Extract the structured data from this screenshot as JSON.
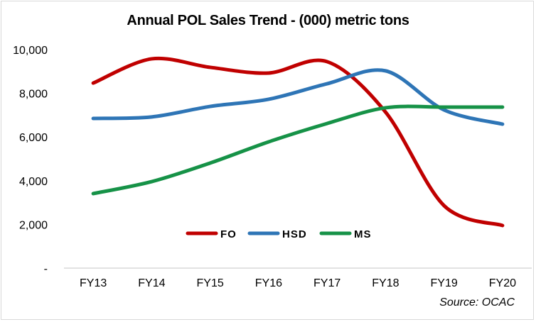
{
  "chart_data": {
    "type": "line",
    "title": "Annual POL Sales Trend - (000) metric tons",
    "xlabel": "",
    "ylabel": "",
    "categories": [
      "FY13",
      "FY14",
      "FY15",
      "FY16",
      "FY17",
      "FY18",
      "FY19",
      "FY20"
    ],
    "ylim": [
      0,
      10000
    ],
    "yticks": [
      0,
      2000,
      4000,
      6000,
      8000,
      10000
    ],
    "ytick_labels": [
      "-",
      "2,000",
      "4,000",
      "6,000",
      "8,000",
      "10,000"
    ],
    "grid": false,
    "smooth": true,
    "legend_position": "bottom-center-inside",
    "series": [
      {
        "name": "FO",
        "color": "#c00000",
        "values": [
          8470,
          9580,
          9190,
          8930,
          9450,
          7140,
          2860,
          1950
        ]
      },
      {
        "name": "HSD",
        "color": "#2e75b6",
        "values": [
          6850,
          6920,
          7400,
          7730,
          8440,
          9030,
          7240,
          6590
        ]
      },
      {
        "name": "MS",
        "color": "#169247",
        "values": [
          3410,
          3960,
          4810,
          5780,
          6620,
          7340,
          7370,
          7370
        ]
      }
    ],
    "source": "Source: OCAC"
  }
}
